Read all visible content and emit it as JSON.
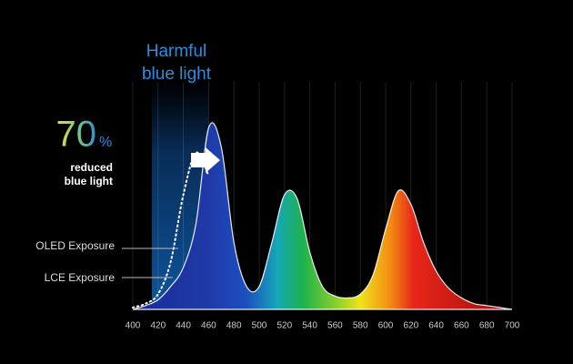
{
  "chart_data": {
    "type": "area",
    "title": [
      "Harmful",
      "blue light"
    ],
    "headline": {
      "number": "70",
      "unit": "%"
    },
    "subtitle": [
      "reduced",
      "blue light"
    ],
    "x": [
      400,
      410,
      420,
      430,
      440,
      450,
      460,
      470,
      480,
      490,
      500,
      510,
      520,
      530,
      540,
      550,
      560,
      570,
      580,
      590,
      600,
      610,
      620,
      630,
      640,
      650,
      660,
      670,
      680,
      690,
      700
    ],
    "series": [
      {
        "name": "OLED Exposure",
        "color": "#ffffff",
        "style": "solid",
        "values": [
          0.0,
          0.02,
          0.05,
          0.12,
          0.22,
          0.45,
          0.95,
          0.85,
          0.35,
          0.12,
          0.12,
          0.35,
          0.6,
          0.58,
          0.3,
          0.12,
          0.07,
          0.06,
          0.08,
          0.18,
          0.42,
          0.62,
          0.55,
          0.35,
          0.2,
          0.11,
          0.06,
          0.03,
          0.02,
          0.01,
          0.0
        ]
      },
      {
        "name": "LCE Exposure",
        "color": "#ffffff",
        "style": "dotted",
        "values": [
          0.01,
          0.03,
          0.08,
          0.25,
          0.6,
          0.82,
          0.7,
          null,
          null,
          null,
          null,
          null,
          null,
          null,
          null,
          null,
          null,
          null,
          null,
          null,
          null,
          null,
          null,
          null,
          null,
          null,
          null,
          null,
          null,
          null,
          null
        ]
      }
    ],
    "xlim": [
      400,
      700
    ],
    "xticks": [
      400,
      420,
      440,
      460,
      480,
      500,
      520,
      540,
      560,
      580,
      600,
      620,
      640,
      660,
      680,
      700
    ],
    "ylim": [
      0,
      1
    ],
    "band": [
      415,
      460
    ],
    "grid": true
  }
}
